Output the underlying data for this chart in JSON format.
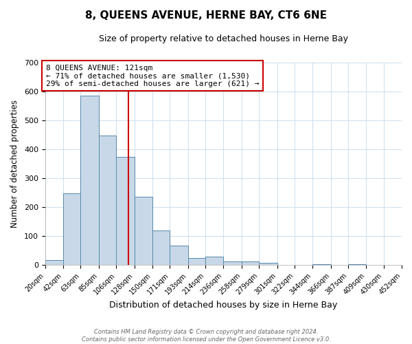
{
  "title": "8, QUEENS AVENUE, HERNE BAY, CT6 6NE",
  "subtitle": "Size of property relative to detached houses in Herne Bay",
  "xlabel": "Distribution of detached houses by size in Herne Bay",
  "ylabel": "Number of detached properties",
  "bar_edges": [
    20,
    42,
    63,
    85,
    106,
    128,
    150,
    171,
    193,
    214,
    236,
    258,
    279,
    301,
    322,
    344,
    366,
    387,
    409,
    430,
    452
  ],
  "bar_heights": [
    18,
    248,
    585,
    448,
    373,
    237,
    120,
    67,
    24,
    30,
    12,
    13,
    9,
    0,
    0,
    3,
    0,
    3,
    0,
    2
  ],
  "bar_color": "#c8d8e8",
  "bar_edge_color": "#5588aa",
  "property_line_x": 121,
  "property_line_color": "#cc0000",
  "annotation_title": "8 QUEENS AVENUE: 121sqm",
  "annotation_line1": "← 71% of detached houses are smaller (1,530)",
  "annotation_line2": "29% of semi-detached houses are larger (621) →",
  "annotation_box_color": "#cc0000",
  "ylim": [
    0,
    700
  ],
  "yticks": [
    0,
    100,
    200,
    300,
    400,
    500,
    600,
    700
  ],
  "tick_labels": [
    "20sqm",
    "42sqm",
    "63sqm",
    "85sqm",
    "106sqm",
    "128sqm",
    "150sqm",
    "171sqm",
    "193sqm",
    "214sqm",
    "236sqm",
    "258sqm",
    "279sqm",
    "301sqm",
    "322sqm",
    "344sqm",
    "366sqm",
    "387sqm",
    "409sqm",
    "430sqm",
    "452sqm"
  ],
  "footer_line1": "Contains HM Land Registry data © Crown copyright and database right 2024.",
  "footer_line2": "Contains public sector information licensed under the Open Government Licence v3.0.",
  "bg_color": "#ffffff",
  "plot_bg_color": "#ffffff",
  "grid_color": "#ccddee"
}
